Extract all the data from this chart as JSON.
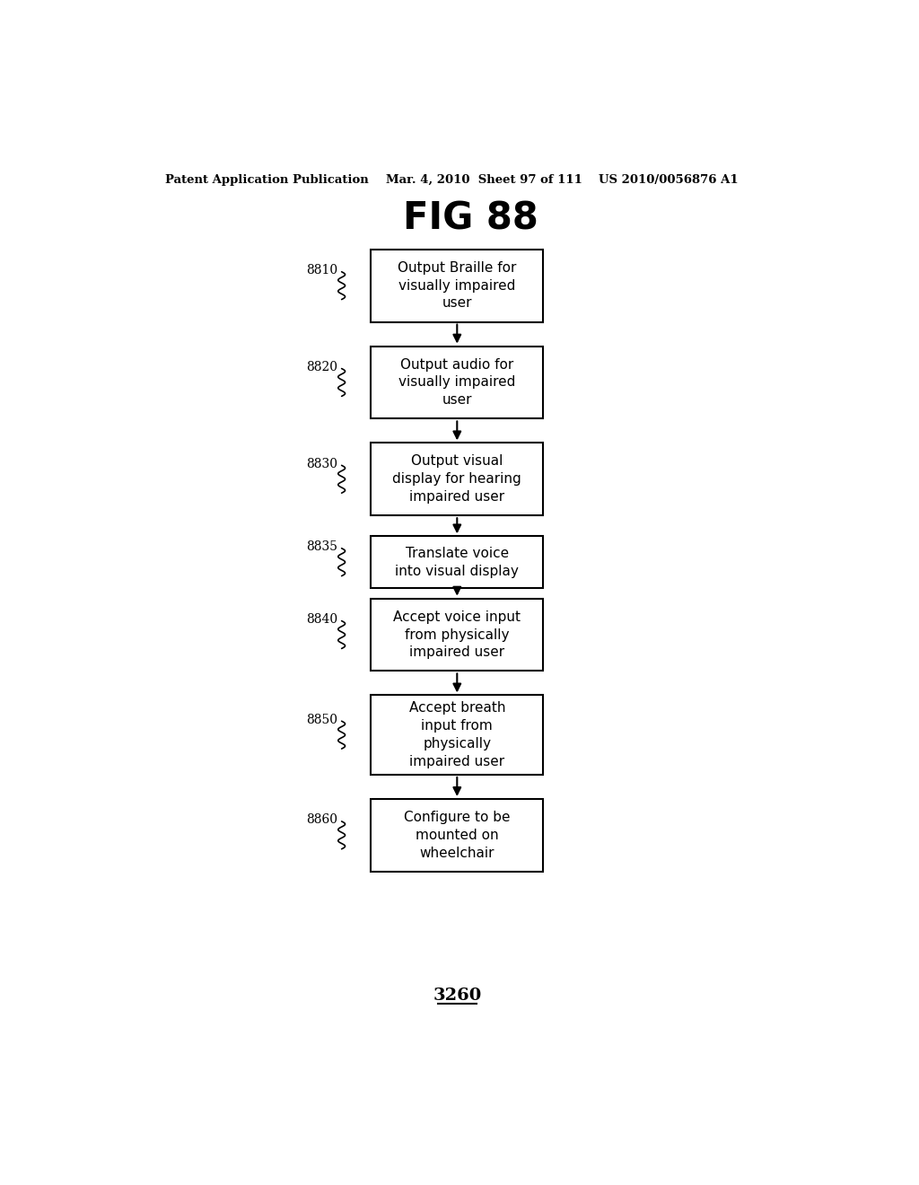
{
  "title": "FIG 88",
  "header_left": "Patent Application Publication",
  "header_mid": "Mar. 4, 2010  Sheet 97 of 111",
  "header_right": "US 2010/0056876 A1",
  "footer_label": "3260",
  "background_color": "#ffffff",
  "boxes": [
    {
      "id": "8810",
      "label": "Output Braille for\nvisually impaired\nuser"
    },
    {
      "id": "8820",
      "label": "Output audio for\nvisually impaired\nuser"
    },
    {
      "id": "8830",
      "label": "Output visual\ndisplay for hearing\nimpaired user"
    },
    {
      "id": "8835",
      "label": "Translate voice\ninto visual display"
    },
    {
      "id": "8840",
      "label": "Accept voice input\nfrom physically\nimpaired user"
    },
    {
      "id": "8850",
      "label": "Accept breath\ninput from\nphysically\nimpaired user"
    },
    {
      "id": "8860",
      "label": "Configure to be\nmounted on\nwheelchair"
    }
  ],
  "box_tops": [
    155,
    295,
    435,
    570,
    660,
    800,
    950
  ],
  "box_heights": [
    105,
    105,
    105,
    75,
    105,
    115,
    105
  ]
}
